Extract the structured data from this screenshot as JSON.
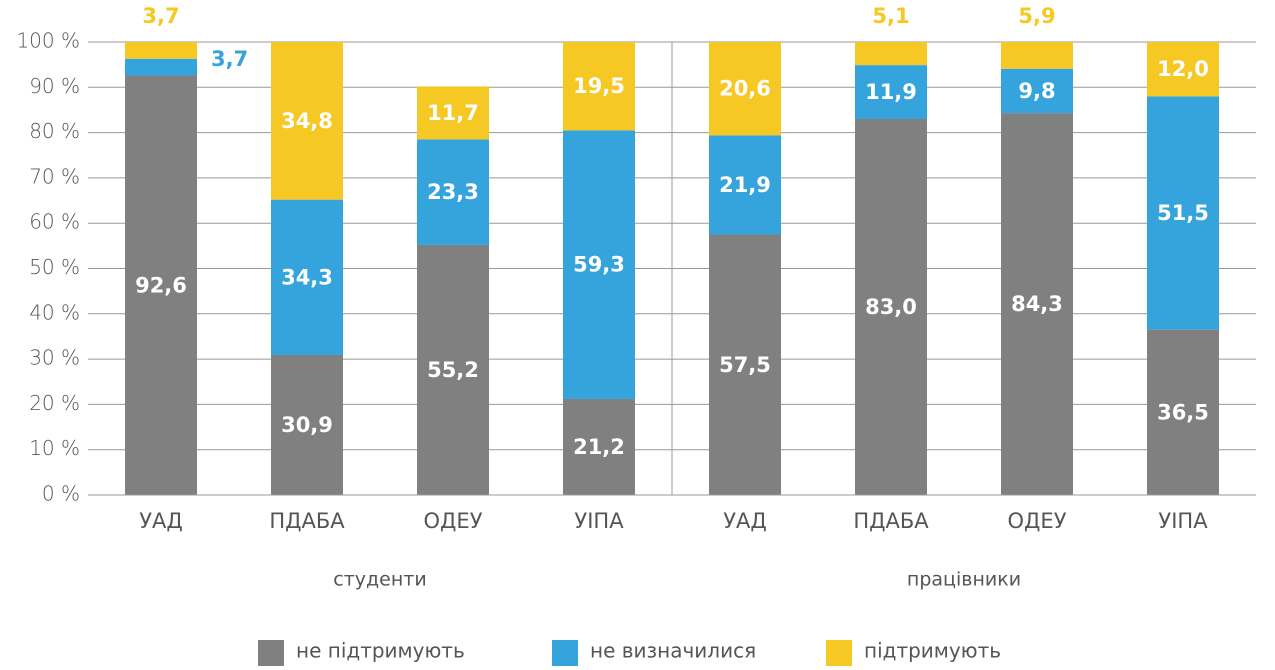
{
  "chart_data": {
    "type": "stacked_bar",
    "categories": [
      "УАД",
      "ПДАБА",
      "ОДЕУ",
      "УІПА",
      "УАД",
      "ПДАБА",
      "ОДЕУ",
      "УІПА"
    ],
    "group_labels": [
      "студенти",
      "працівники"
    ],
    "series": [
      {
        "name": "не підтримують",
        "color": "#808080",
        "values": [
          92.6,
          30.9,
          55.2,
          21.2,
          57.5,
          83.0,
          84.3,
          36.5
        ],
        "value_labels": [
          "92,6",
          "30,9",
          "55,2",
          "21,2",
          "57,5",
          "83,0",
          "84,3",
          "36,5"
        ]
      },
      {
        "name": "не визначилися",
        "color": "#35a3dc",
        "values": [
          3.7,
          34.3,
          23.3,
          59.3,
          21.9,
          11.9,
          9.8,
          51.5
        ],
        "value_labels": [
          "3,7",
          "34,3",
          "23,3",
          "59,3",
          "21,9",
          "11,9",
          "9,8",
          "51,5"
        ]
      },
      {
        "name": "підтримують",
        "color": "#f6c823",
        "values": [
          3.7,
          34.8,
          11.7,
          19.5,
          20.6,
          5.1,
          5.9,
          12.0
        ],
        "value_labels": [
          "3,7",
          "34,8",
          "11,7",
          "19,5",
          "20,6",
          "5,1",
          "5,9",
          "12,0"
        ]
      }
    ],
    "ylim": [
      0,
      100
    ],
    "yticks": [
      {
        "value": 0,
        "label": "0 %"
      },
      {
        "value": 10,
        "label": "10 %"
      },
      {
        "value": 20,
        "label": "20 %"
      },
      {
        "value": 30,
        "label": "30 %"
      },
      {
        "value": 40,
        "label": "40 %"
      },
      {
        "value": 50,
        "label": "50 %"
      },
      {
        "value": 60,
        "label": "60 %"
      },
      {
        "value": 70,
        "label": "70 %"
      },
      {
        "value": 80,
        "label": "80 %"
      },
      {
        "value": 90,
        "label": "90 %"
      },
      {
        "value": 100,
        "label": "100 %"
      }
    ],
    "grid": true
  }
}
